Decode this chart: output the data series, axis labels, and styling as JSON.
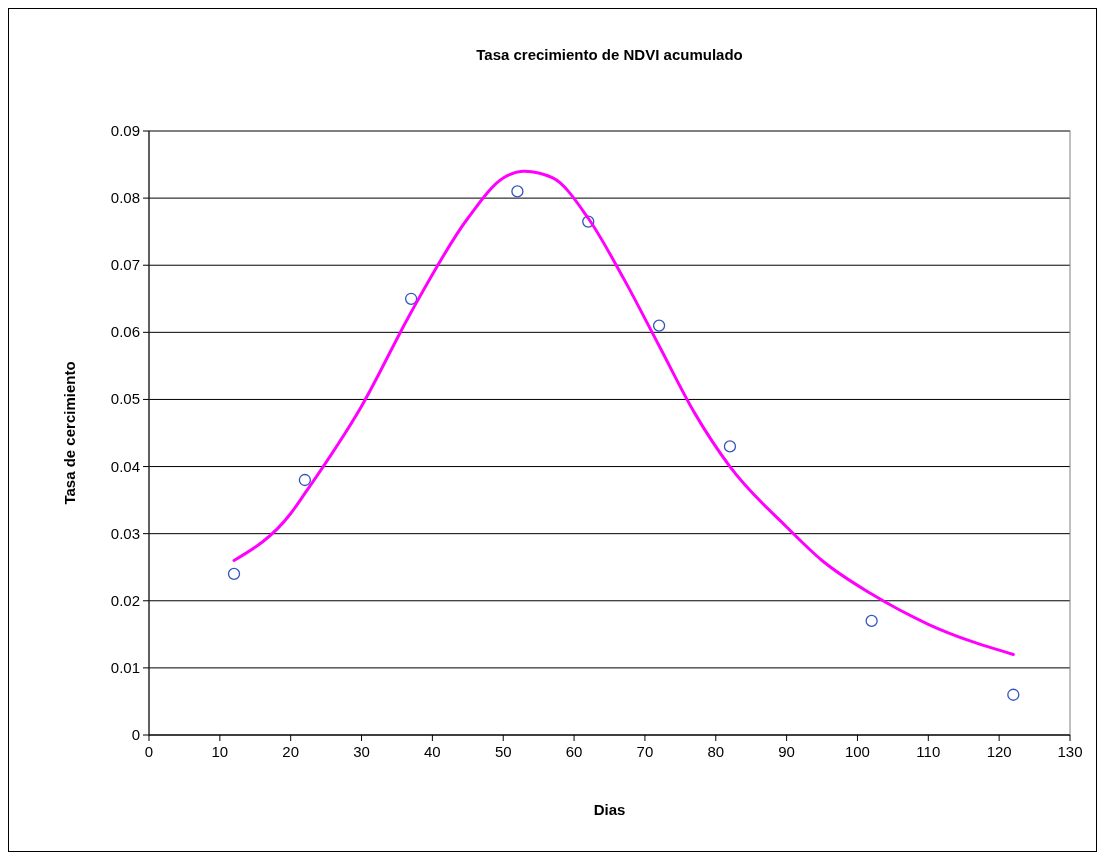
{
  "chart_data": {
    "type": "scatter",
    "title": "Tasa crecimiento de NDVI acumulado",
    "xlabel": "Dias",
    "ylabel": "Tasa de cercimiento",
    "xlim": [
      0,
      130
    ],
    "xticks": [
      0,
      10,
      20,
      30,
      40,
      50,
      60,
      70,
      80,
      90,
      100,
      110,
      120,
      130
    ],
    "ylim": [
      0,
      0.09
    ],
    "yticks": [
      0,
      0.01,
      0.02,
      0.03,
      0.04,
      0.05,
      0.06,
      0.07,
      0.08,
      0.09
    ],
    "grid": "y",
    "series": [
      {
        "color": "#3355bb",
        "marker": "circle",
        "x": [
          12,
          22,
          37,
          52,
          62,
          72,
          82,
          102,
          122
        ],
        "values": [
          0.024,
          0.038,
          0.065,
          0.081,
          0.0765,
          0.061,
          0.043,
          0.017,
          0.006
        ]
      },
      {
        "type": "line",
        "color": "#ff00ff",
        "marker": "none",
        "line_style": "solid",
        "x": [
          12,
          20,
          22,
          30,
          37,
          45,
          50,
          53,
          57,
          62,
          67,
          72,
          77,
          82,
          90,
          95,
          102,
          110,
          122
        ],
        "values": [
          0.026,
          0.033,
          0.036,
          0.049,
          0.063,
          0.077,
          0.083,
          0.084,
          0.083,
          0.077,
          0.068,
          0.058,
          0.048,
          0.04,
          0.031,
          0.026,
          0.021,
          0.0165,
          0.012
        ]
      }
    ]
  }
}
